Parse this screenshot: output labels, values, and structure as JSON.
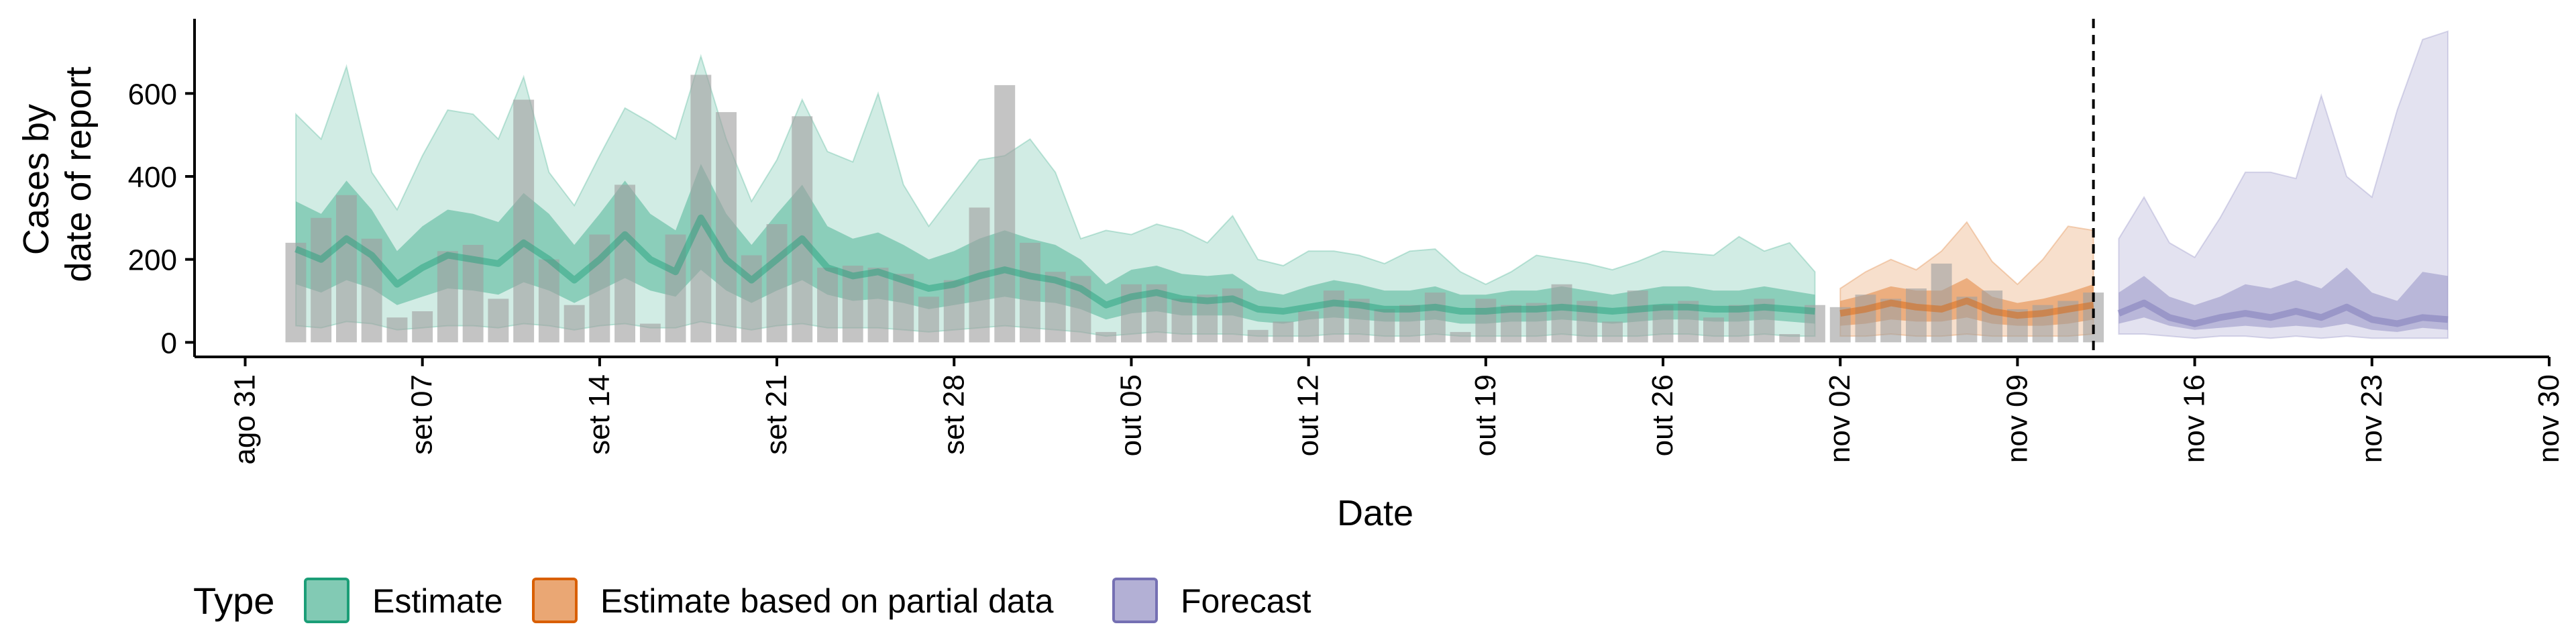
{
  "chart_data": {
    "type": "area",
    "xlabel": "Date",
    "ylabel": [
      "Cases by",
      "date of report"
    ],
    "x_ticks": [
      "ago 31",
      "set 07",
      "set 14",
      "set 21",
      "set 28",
      "out 05",
      "out 12",
      "out 19",
      "out 26",
      "nov 02",
      "nov 09",
      "nov 16",
      "nov 23",
      "nov 30"
    ],
    "x_tick_dates": [
      "2020-08-31",
      "2020-09-07",
      "2020-09-14",
      "2020-09-21",
      "2020-09-28",
      "2020-10-05",
      "2020-10-12",
      "2020-10-19",
      "2020-10-26",
      "2020-11-02",
      "2020-11-09",
      "2020-11-16",
      "2020-11-23",
      "2020-11-30"
    ],
    "y_ticks": [
      0,
      200,
      400,
      600
    ],
    "ylim": [
      -35,
      780
    ],
    "xlim": [
      "2020-08-29",
      "2020-11-30"
    ],
    "grid": false,
    "legend": {
      "position": "bottom-left",
      "title": "Type",
      "entries": [
        {
          "label": "Estimate",
          "color": "#1b9e77"
        },
        {
          "label": "Estimate based on partial data",
          "color": "#d95f02"
        },
        {
          "label": "Forecast",
          "color": "#7570b3"
        }
      ]
    },
    "colors": {
      "estimate": "#1b9e77",
      "partial": "#d95f02",
      "forecast": "#7570b3",
      "bars": "#a0a0a0"
    },
    "vline_date": "2020-11-12",
    "bars": {
      "dates": [
        "2020-09-02",
        "2020-09-03",
        "2020-09-04",
        "2020-09-05",
        "2020-09-06",
        "2020-09-07",
        "2020-09-08",
        "2020-09-09",
        "2020-09-10",
        "2020-09-11",
        "2020-09-12",
        "2020-09-13",
        "2020-09-14",
        "2020-09-15",
        "2020-09-16",
        "2020-09-17",
        "2020-09-18",
        "2020-09-19",
        "2020-09-20",
        "2020-09-21",
        "2020-09-22",
        "2020-09-23",
        "2020-09-24",
        "2020-09-25",
        "2020-09-26",
        "2020-09-27",
        "2020-09-28",
        "2020-09-29",
        "2020-09-30",
        "2020-10-01",
        "2020-10-02",
        "2020-10-03",
        "2020-10-04",
        "2020-10-05",
        "2020-10-06",
        "2020-10-07",
        "2020-10-08",
        "2020-10-09",
        "2020-10-10",
        "2020-10-11",
        "2020-10-12",
        "2020-10-13",
        "2020-10-14",
        "2020-10-15",
        "2020-10-16",
        "2020-10-17",
        "2020-10-18",
        "2020-10-19",
        "2020-10-20",
        "2020-10-21",
        "2020-10-22",
        "2020-10-23",
        "2020-10-24",
        "2020-10-25",
        "2020-10-26",
        "2020-10-27",
        "2020-10-28",
        "2020-10-29",
        "2020-10-30",
        "2020-10-31",
        "2020-11-01",
        "2020-11-02",
        "2020-11-03",
        "2020-11-04",
        "2020-11-05",
        "2020-11-06",
        "2020-11-07",
        "2020-11-08",
        "2020-11-09",
        "2020-11-10",
        "2020-11-11",
        "2020-11-12"
      ],
      "values": [
        240,
        300,
        355,
        250,
        60,
        75,
        220,
        235,
        105,
        585,
        200,
        90,
        260,
        380,
        45,
        260,
        645,
        555,
        210,
        285,
        545,
        180,
        185,
        180,
        165,
        110,
        150,
        325,
        620,
        240,
        170,
        160,
        25,
        140,
        140,
        105,
        115,
        130,
        30,
        50,
        75,
        125,
        105,
        80,
        90,
        120,
        25,
        105,
        90,
        95,
        140,
        100,
        50,
        125,
        90,
        100,
        60,
        90,
        105,
        20,
        90,
        85,
        115,
        105,
        130,
        190,
        110,
        125,
        80,
        90,
        100,
        120
      ]
    },
    "series": [
      {
        "name": "Estimate",
        "dates": [
          "2020-09-02",
          "2020-09-03",
          "2020-09-04",
          "2020-09-05",
          "2020-09-06",
          "2020-09-07",
          "2020-09-08",
          "2020-09-09",
          "2020-09-10",
          "2020-09-11",
          "2020-09-12",
          "2020-09-13",
          "2020-09-14",
          "2020-09-15",
          "2020-09-16",
          "2020-09-17",
          "2020-09-18",
          "2020-09-19",
          "2020-09-20",
          "2020-09-21",
          "2020-09-22",
          "2020-09-23",
          "2020-09-24",
          "2020-09-25",
          "2020-09-26",
          "2020-09-27",
          "2020-09-28",
          "2020-09-29",
          "2020-09-30",
          "2020-10-01",
          "2020-10-02",
          "2020-10-03",
          "2020-10-04",
          "2020-10-05",
          "2020-10-06",
          "2020-10-07",
          "2020-10-08",
          "2020-10-09",
          "2020-10-10",
          "2020-10-11",
          "2020-10-12",
          "2020-10-13",
          "2020-10-14",
          "2020-10-15",
          "2020-10-16",
          "2020-10-17",
          "2020-10-18",
          "2020-10-19",
          "2020-10-20",
          "2020-10-21",
          "2020-10-22",
          "2020-10-23",
          "2020-10-24",
          "2020-10-25",
          "2020-10-26",
          "2020-10-27",
          "2020-10-28",
          "2020-10-29",
          "2020-10-30",
          "2020-10-31",
          "2020-11-01"
        ],
        "median": [
          225,
          200,
          250,
          210,
          140,
          180,
          210,
          200,
          190,
          240,
          200,
          150,
          200,
          260,
          200,
          170,
          300,
          200,
          150,
          200,
          250,
          180,
          160,
          170,
          150,
          130,
          140,
          160,
          175,
          160,
          150,
          130,
          90,
          110,
          120,
          105,
          100,
          105,
          80,
          75,
          85,
          95,
          90,
          80,
          80,
          85,
          75,
          75,
          80,
          80,
          85,
          80,
          75,
          80,
          85,
          85,
          80,
          80,
          85,
          80,
          75
        ],
        "lower90": [
          40,
          35,
          50,
          45,
          30,
          35,
          40,
          40,
          35,
          45,
          40,
          30,
          40,
          45,
          35,
          35,
          50,
          40,
          30,
          40,
          45,
          35,
          35,
          35,
          30,
          25,
          30,
          35,
          40,
          35,
          30,
          25,
          15,
          20,
          25,
          20,
          20,
          20,
          15,
          15,
          15,
          20,
          20,
          15,
          15,
          20,
          15,
          15,
          15,
          15,
          20,
          15,
          15,
          15,
          20,
          20,
          15,
          15,
          20,
          15,
          15
        ],
        "upper90": [
          550,
          490,
          665,
          410,
          320,
          450,
          560,
          550,
          490,
          640,
          410,
          330,
          450,
          565,
          530,
          490,
          690,
          490,
          340,
          440,
          585,
          460,
          435,
          600,
          380,
          280,
          360,
          440,
          450,
          490,
          410,
          250,
          270,
          260,
          285,
          270,
          240,
          305,
          200,
          185,
          220,
          220,
          210,
          190,
          220,
          225,
          170,
          140,
          170,
          210,
          200,
          190,
          175,
          195,
          220,
          215,
          210,
          255,
          220,
          240,
          170
        ],
        "lower50": [
          140,
          120,
          150,
          130,
          90,
          110,
          130,
          125,
          115,
          145,
          125,
          95,
          125,
          155,
          125,
          110,
          175,
          125,
          95,
          125,
          150,
          115,
          100,
          105,
          95,
          80,
          90,
          100,
          110,
          100,
          95,
          80,
          55,
          70,
          75,
          65,
          65,
          65,
          50,
          45,
          55,
          60,
          55,
          50,
          50,
          55,
          45,
          45,
          50,
          50,
          55,
          50,
          45,
          50,
          55,
          55,
          50,
          50,
          55,
          50,
          45
        ],
        "upper50": [
          340,
          310,
          390,
          320,
          220,
          280,
          320,
          310,
          290,
          360,
          310,
          235,
          310,
          390,
          310,
          270,
          430,
          310,
          235,
          310,
          380,
          280,
          250,
          265,
          235,
          200,
          220,
          250,
          270,
          250,
          235,
          200,
          140,
          175,
          185,
          165,
          160,
          165,
          125,
          115,
          135,
          150,
          140,
          125,
          125,
          135,
          115,
          115,
          125,
          125,
          135,
          125,
          115,
          125,
          135,
          135,
          125,
          125,
          135,
          125,
          115
        ]
      },
      {
        "name": "Estimate based on partial data",
        "dates": [
          "2020-11-02",
          "2020-11-03",
          "2020-11-04",
          "2020-11-05",
          "2020-11-06",
          "2020-11-07",
          "2020-11-08",
          "2020-11-09",
          "2020-11-10",
          "2020-11-11",
          "2020-11-12"
        ],
        "median": [
          70,
          80,
          95,
          85,
          80,
          100,
          75,
          65,
          70,
          80,
          90
        ],
        "lower90": [
          15,
          15,
          20,
          15,
          15,
          20,
          15,
          15,
          15,
          15,
          20
        ],
        "upper90": [
          130,
          170,
          200,
          175,
          220,
          290,
          195,
          140,
          200,
          280,
          270
        ],
        "lower50": [
          40,
          45,
          55,
          50,
          50,
          60,
          45,
          40,
          40,
          45,
          55
        ],
        "upper50": [
          100,
          115,
          135,
          125,
          125,
          155,
          110,
          95,
          105,
          120,
          140
        ]
      },
      {
        "name": "Forecast",
        "dates": [
          "2020-11-13",
          "2020-11-14",
          "2020-11-15",
          "2020-11-16",
          "2020-11-17",
          "2020-11-18",
          "2020-11-19",
          "2020-11-20",
          "2020-11-21",
          "2020-11-22",
          "2020-11-23",
          "2020-11-24",
          "2020-11-25",
          "2020-11-26"
        ],
        "median": [
          70,
          95,
          60,
          45,
          60,
          70,
          60,
          75,
          60,
          85,
          55,
          45,
          60,
          55
        ],
        "lower90": [
          20,
          20,
          15,
          10,
          15,
          15,
          10,
          15,
          10,
          15,
          10,
          10,
          10,
          10
        ],
        "upper90": [
          250,
          350,
          240,
          205,
          300,
          410,
          410,
          395,
          595,
          400,
          350,
          560,
          730,
          750
        ],
        "lower50": [
          45,
          60,
          40,
          30,
          35,
          40,
          35,
          40,
          35,
          45,
          30,
          25,
          35,
          30
        ],
        "upper50": [
          120,
          160,
          110,
          90,
          110,
          140,
          130,
          150,
          130,
          180,
          120,
          100,
          170,
          160
        ]
      }
    ]
  }
}
